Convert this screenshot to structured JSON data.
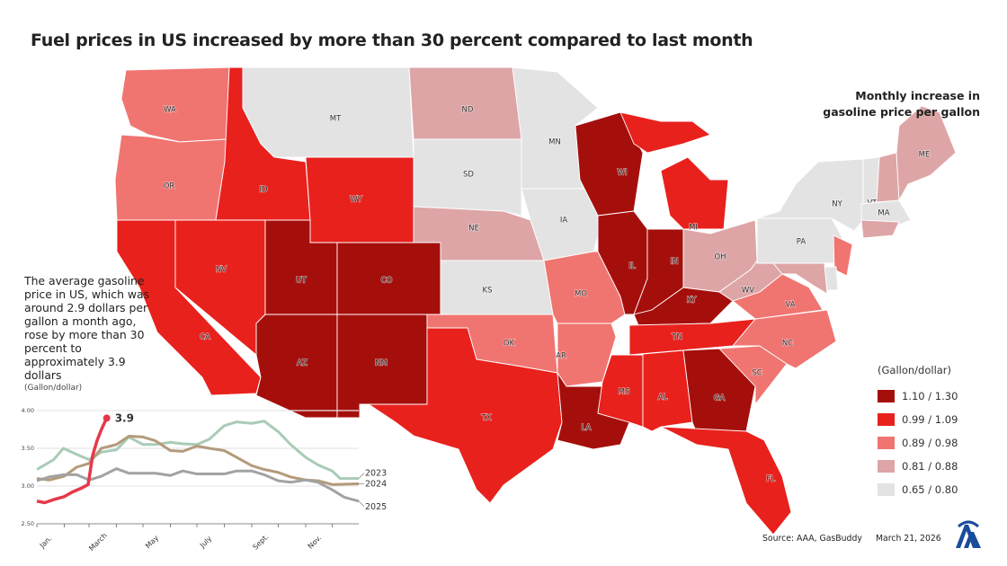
{
  "title": "Fuel prices in US increased by more than 30 percent compared to last month",
  "legend": {
    "title": "Monthly increase in gasoline price per gallon",
    "unit": "(Gallon/dollar)",
    "buckets": [
      {
        "label": "1.10 / 1.30",
        "color": "#a50f0b"
      },
      {
        "label": "0.99 / 1.09",
        "color": "#e8211d"
      },
      {
        "label": "0.89 / 0.98",
        "color": "#f07571"
      },
      {
        "label": "0.81 / 0.88",
        "color": "#dea5a6"
      },
      {
        "label": "0.65 / 0.80",
        "color": "#e3e3e3"
      }
    ]
  },
  "states": [
    {
      "id": "WA",
      "label": "WA",
      "bucket": 2
    },
    {
      "id": "OR",
      "label": "OR",
      "bucket": 2
    },
    {
      "id": "CA",
      "label": "CA",
      "bucket": 1
    },
    {
      "id": "NV",
      "label": "NV",
      "bucket": 1
    },
    {
      "id": "ID",
      "label": "ID",
      "bucket": 1
    },
    {
      "id": "MT",
      "label": "MT",
      "bucket": 4
    },
    {
      "id": "WY",
      "label": "WY",
      "bucket": 1
    },
    {
      "id": "UT",
      "label": "UT",
      "bucket": 0
    },
    {
      "id": "CO",
      "label": "CO",
      "bucket": 0
    },
    {
      "id": "AZ",
      "label": "AZ",
      "bucket": 0
    },
    {
      "id": "NM",
      "label": "NM",
      "bucket": 0
    },
    {
      "id": "ND",
      "label": "ND",
      "bucket": 3
    },
    {
      "id": "SD",
      "label": "SD",
      "bucket": 4
    },
    {
      "id": "NE",
      "label": "NE",
      "bucket": 3
    },
    {
      "id": "KS",
      "label": "KS",
      "bucket": 4
    },
    {
      "id": "OK",
      "label": "OK",
      "bucket": 2
    },
    {
      "id": "TX",
      "label": "TX",
      "bucket": 1
    },
    {
      "id": "MN",
      "label": "MN",
      "bucket": 4
    },
    {
      "id": "IA",
      "label": "IA",
      "bucket": 4
    },
    {
      "id": "MO",
      "label": "MO",
      "bucket": 2
    },
    {
      "id": "AR",
      "label": "AR",
      "bucket": 2
    },
    {
      "id": "LA",
      "label": "LA",
      "bucket": 0
    },
    {
      "id": "WI",
      "label": "WI",
      "bucket": 0
    },
    {
      "id": "IL",
      "label": "IL",
      "bucket": 0
    },
    {
      "id": "MI",
      "label": "MI",
      "bucket": 1
    },
    {
      "id": "IN",
      "label": "IN",
      "bucket": 0
    },
    {
      "id": "OH",
      "label": "OH",
      "bucket": 3
    },
    {
      "id": "KY",
      "label": "KY",
      "bucket": 0
    },
    {
      "id": "TN",
      "label": "TN",
      "bucket": 1
    },
    {
      "id": "MS",
      "label": "MS",
      "bucket": 1
    },
    {
      "id": "AL",
      "label": "AL",
      "bucket": 1
    },
    {
      "id": "GA",
      "label": "GA",
      "bucket": 0
    },
    {
      "id": "FL",
      "label": "FL",
      "bucket": 1
    },
    {
      "id": "SC",
      "label": "SC",
      "bucket": 2
    },
    {
      "id": "NC",
      "label": "NC",
      "bucket": 2
    },
    {
      "id": "VA",
      "label": "VA",
      "bucket": 2
    },
    {
      "id": "WV",
      "label": "WV",
      "bucket": 3
    },
    {
      "id": "PA",
      "label": "PA",
      "bucket": 4
    },
    {
      "id": "NY",
      "label": "NY",
      "bucket": 4
    },
    {
      "id": "NJ",
      "label": "",
      "bucket": 2
    },
    {
      "id": "MD",
      "label": "",
      "bucket": 3
    },
    {
      "id": "DE",
      "label": "",
      "bucket": 4
    },
    {
      "id": "VT",
      "label": "VT",
      "bucket": 4
    },
    {
      "id": "NH",
      "label": "",
      "bucket": 3
    },
    {
      "id": "ME",
      "label": "ME",
      "bucket": 3
    },
    {
      "id": "MA",
      "label": "MA",
      "bucket": 4
    },
    {
      "id": "CT",
      "label": "",
      "bucket": 3
    }
  ],
  "description": "The average gasoline price in US, which was around 2.9 dollars per gallon a month ago, rose by more than 30 percent to approximately 3.9 dollars",
  "chart_data": {
    "type": "line",
    "ylabel": "(Gallon/dollar)",
    "ylim": [
      2.5,
      4.0
    ],
    "yticks": [
      "2.50",
      "3.00",
      "3.50",
      "4.00"
    ],
    "xticks": [
      "Jan.",
      "March",
      "May",
      "July",
      "Sept.",
      "Nov."
    ],
    "grid": true,
    "annotation": "3.9",
    "series": [
      {
        "name": "2023",
        "color": "#a9cbb7",
        "points": [
          [
            "01-01",
            3.22
          ],
          [
            "01-10",
            3.28
          ],
          [
            "01-20",
            3.35
          ],
          [
            "01-31",
            3.5
          ],
          [
            "02-15",
            3.42
          ],
          [
            "03-01",
            3.35
          ],
          [
            "03-15",
            3.45
          ],
          [
            "04-01",
            3.48
          ],
          [
            "04-15",
            3.65
          ],
          [
            "05-01",
            3.55
          ],
          [
            "05-15",
            3.55
          ],
          [
            "06-01",
            3.58
          ],
          [
            "06-15",
            3.56
          ],
          [
            "07-01",
            3.55
          ],
          [
            "07-15",
            3.62
          ],
          [
            "08-01",
            3.8
          ],
          [
            "08-15",
            3.85
          ],
          [
            "09-01",
            3.83
          ],
          [
            "09-15",
            3.86
          ],
          [
            "10-01",
            3.72
          ],
          [
            "10-15",
            3.55
          ],
          [
            "11-01",
            3.38
          ],
          [
            "11-15",
            3.28
          ],
          [
            "12-01",
            3.2
          ],
          [
            "12-10",
            3.1
          ],
          [
            "12-31",
            3.1
          ]
        ]
      },
      {
        "name": "2024",
        "color": "#b49a7a",
        "points": [
          [
            "01-01",
            3.1
          ],
          [
            "01-15",
            3.08
          ],
          [
            "02-01",
            3.13
          ],
          [
            "02-15",
            3.25
          ],
          [
            "03-01",
            3.3
          ],
          [
            "03-15",
            3.5
          ],
          [
            "04-01",
            3.55
          ],
          [
            "04-15",
            3.66
          ],
          [
            "05-01",
            3.65
          ],
          [
            "05-15",
            3.6
          ],
          [
            "06-01",
            3.47
          ],
          [
            "06-15",
            3.46
          ],
          [
            "07-01",
            3.53
          ],
          [
            "07-15",
            3.5
          ],
          [
            "08-01",
            3.47
          ],
          [
            "08-15",
            3.38
          ],
          [
            "09-01",
            3.27
          ],
          [
            "09-15",
            3.22
          ],
          [
            "10-01",
            3.18
          ],
          [
            "10-15",
            3.12
          ],
          [
            "11-01",
            3.08
          ],
          [
            "11-15",
            3.07
          ],
          [
            "12-01",
            3.02
          ],
          [
            "12-31",
            3.03
          ]
        ]
      },
      {
        "name": "2025",
        "color": "#a2a2a2",
        "points": [
          [
            "01-01",
            3.07
          ],
          [
            "01-15",
            3.12
          ],
          [
            "02-01",
            3.15
          ],
          [
            "02-15",
            3.15
          ],
          [
            "03-01",
            3.08
          ],
          [
            "03-15",
            3.13
          ],
          [
            "04-01",
            3.23
          ],
          [
            "04-15",
            3.17
          ],
          [
            "05-01",
            3.17
          ],
          [
            "05-15",
            3.17
          ],
          [
            "06-01",
            3.14
          ],
          [
            "06-15",
            3.2
          ],
          [
            "07-01",
            3.16
          ],
          [
            "07-15",
            3.16
          ],
          [
            "08-01",
            3.16
          ],
          [
            "08-15",
            3.2
          ],
          [
            "09-01",
            3.2
          ],
          [
            "09-15",
            3.15
          ],
          [
            "10-01",
            3.07
          ],
          [
            "10-15",
            3.05
          ],
          [
            "11-01",
            3.08
          ],
          [
            "11-15",
            3.05
          ],
          [
            "12-01",
            2.95
          ],
          [
            "12-15",
            2.85
          ],
          [
            "12-31",
            2.8
          ]
        ]
      },
      {
        "name": "",
        "color": "#e5394a",
        "points": [
          [
            "01-01",
            2.8
          ],
          [
            "01-10",
            2.78
          ],
          [
            "01-20",
            2.82
          ],
          [
            "02-01",
            2.86
          ],
          [
            "02-10",
            2.92
          ],
          [
            "02-20",
            2.97
          ],
          [
            "02-28",
            3.02
          ],
          [
            "03-05",
            3.4
          ],
          [
            "03-10",
            3.6
          ],
          [
            "03-15",
            3.75
          ],
          [
            "03-21",
            3.9
          ]
        ]
      }
    ]
  },
  "footer": {
    "source": "Source: AAA, GasBuddy",
    "date": "March 21, 2026",
    "logo_text": "AA"
  }
}
